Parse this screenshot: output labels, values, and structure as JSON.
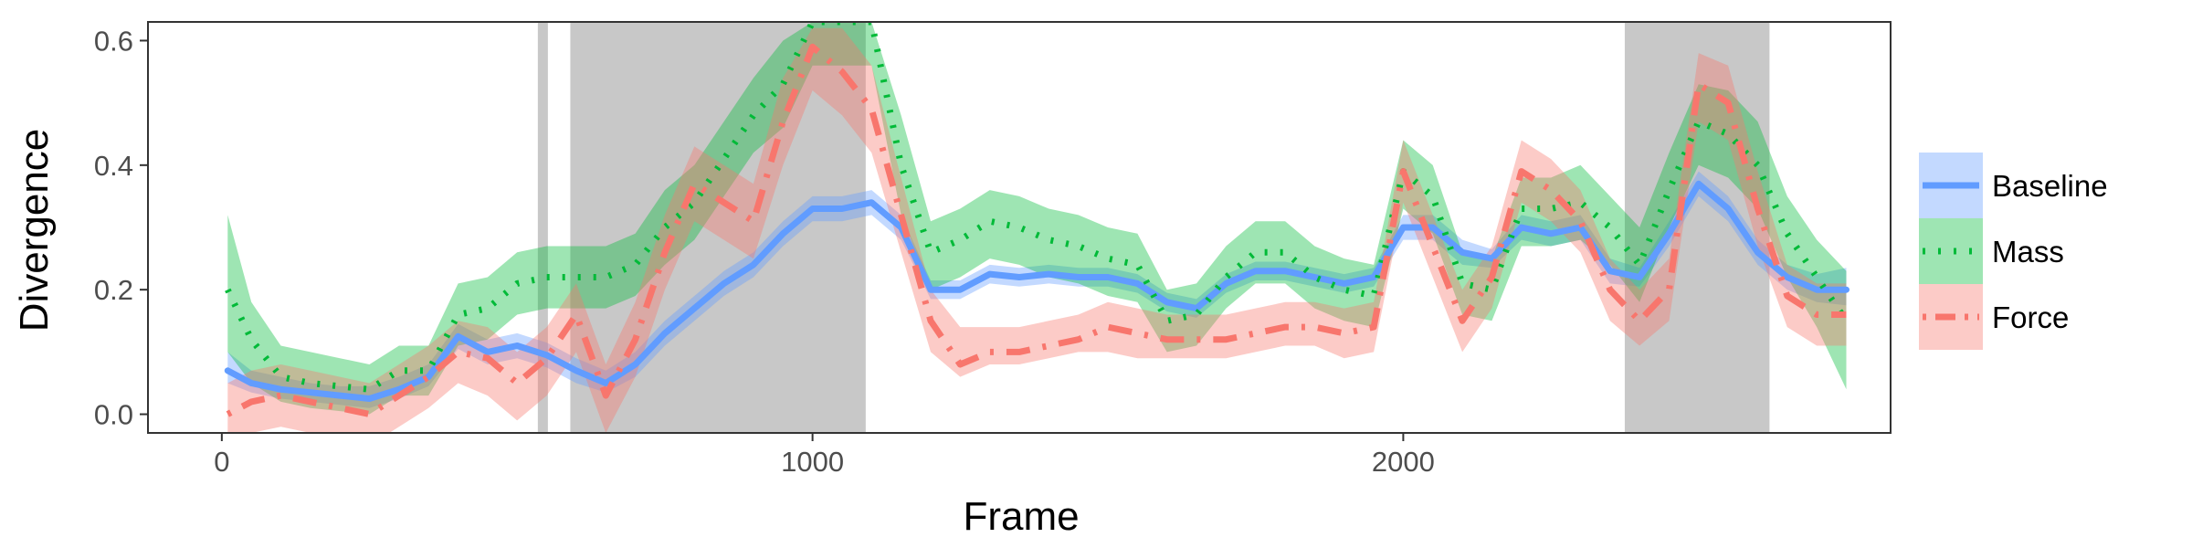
{
  "chart_data": {
    "type": "line",
    "title": "",
    "xlabel": "Frame",
    "ylabel": "Divergence",
    "xlim": [
      -125,
      2825
    ],
    "ylim": [
      -0.03,
      0.63
    ],
    "xticks": [
      0,
      1000,
      2000
    ],
    "yticks": [
      0.0,
      0.2,
      0.4,
      0.6
    ],
    "x_tick_labels": [
      "0",
      "1000",
      "2000"
    ],
    "y_tick_labels": [
      "0.0",
      "0.2",
      "0.4",
      "0.6"
    ],
    "grid": false,
    "legend_position": "right",
    "shaded_regions": [
      [
        535,
        552
      ],
      [
        590,
        1090
      ],
      [
        2375,
        2620
      ]
    ],
    "x": [
      10,
      50,
      100,
      150,
      200,
      250,
      300,
      350,
      400,
      450,
      500,
      550,
      600,
      650,
      700,
      750,
      800,
      850,
      900,
      950,
      1000,
      1050,
      1100,
      1150,
      1200,
      1250,
      1300,
      1350,
      1400,
      1450,
      1500,
      1550,
      1600,
      1650,
      1700,
      1750,
      1800,
      1850,
      1900,
      1950,
      2000,
      2050,
      2100,
      2150,
      2200,
      2250,
      2300,
      2350,
      2400,
      2450,
      2500,
      2550,
      2600,
      2650,
      2700,
      2750
    ],
    "series": [
      {
        "name": "Baseline",
        "color": "#619CFF",
        "style": "solid",
        "values": [
          0.07,
          0.05,
          0.04,
          0.035,
          0.03,
          0.025,
          0.04,
          0.06,
          0.125,
          0.1,
          0.11,
          0.095,
          0.07,
          0.05,
          0.08,
          0.13,
          0.17,
          0.21,
          0.24,
          0.29,
          0.33,
          0.33,
          0.34,
          0.3,
          0.2,
          0.2,
          0.225,
          0.22,
          0.225,
          0.22,
          0.22,
          0.21,
          0.18,
          0.17,
          0.21,
          0.23,
          0.23,
          0.22,
          0.21,
          0.22,
          0.3,
          0.3,
          0.26,
          0.25,
          0.3,
          0.29,
          0.3,
          0.23,
          0.22,
          0.29,
          0.37,
          0.33,
          0.26,
          0.22,
          0.2,
          0.2
        ],
        "lower": [
          0.05,
          0.035,
          0.025,
          0.02,
          0.015,
          0.01,
          0.025,
          0.045,
          0.105,
          0.08,
          0.09,
          0.075,
          0.05,
          0.035,
          0.06,
          0.11,
          0.15,
          0.19,
          0.22,
          0.27,
          0.31,
          0.31,
          0.32,
          0.28,
          0.185,
          0.185,
          0.21,
          0.205,
          0.21,
          0.205,
          0.205,
          0.195,
          0.165,
          0.155,
          0.195,
          0.215,
          0.215,
          0.205,
          0.195,
          0.205,
          0.28,
          0.28,
          0.24,
          0.235,
          0.28,
          0.27,
          0.28,
          0.21,
          0.205,
          0.27,
          0.35,
          0.31,
          0.24,
          0.2,
          0.18,
          0.175
        ],
        "upper": [
          0.1,
          0.07,
          0.06,
          0.05,
          0.045,
          0.045,
          0.06,
          0.08,
          0.145,
          0.12,
          0.13,
          0.115,
          0.09,
          0.07,
          0.1,
          0.15,
          0.19,
          0.23,
          0.26,
          0.31,
          0.35,
          0.35,
          0.36,
          0.32,
          0.215,
          0.215,
          0.24,
          0.235,
          0.24,
          0.235,
          0.235,
          0.225,
          0.195,
          0.185,
          0.225,
          0.245,
          0.245,
          0.235,
          0.225,
          0.235,
          0.32,
          0.32,
          0.28,
          0.265,
          0.32,
          0.31,
          0.32,
          0.25,
          0.235,
          0.31,
          0.39,
          0.35,
          0.28,
          0.24,
          0.225,
          0.235
        ]
      },
      {
        "name": "Mass",
        "color": "#00BA38",
        "style": "dotted",
        "values": [
          0.2,
          0.12,
          0.06,
          0.05,
          0.045,
          0.04,
          0.07,
          0.07,
          0.16,
          0.17,
          0.21,
          0.22,
          0.22,
          0.22,
          0.24,
          0.3,
          0.34,
          0.41,
          0.48,
          0.53,
          0.63,
          0.63,
          0.63,
          0.4,
          0.26,
          0.28,
          0.31,
          0.3,
          0.28,
          0.27,
          0.25,
          0.24,
          0.15,
          0.16,
          0.22,
          0.26,
          0.26,
          0.22,
          0.2,
          0.19,
          0.39,
          0.35,
          0.21,
          0.2,
          0.33,
          0.33,
          0.34,
          0.3,
          0.24,
          0.36,
          0.47,
          0.45,
          0.4,
          0.29,
          0.22,
          0.15
        ],
        "lower": [
          0.1,
          0.05,
          0.02,
          0.01,
          0.005,
          0.0,
          0.03,
          0.03,
          0.11,
          0.12,
          0.16,
          0.17,
          0.17,
          0.17,
          0.19,
          0.24,
          0.28,
          0.35,
          0.42,
          0.46,
          0.56,
          0.56,
          0.56,
          0.32,
          0.2,
          0.22,
          0.25,
          0.24,
          0.22,
          0.21,
          0.19,
          0.18,
          0.1,
          0.11,
          0.17,
          0.21,
          0.21,
          0.17,
          0.15,
          0.14,
          0.33,
          0.29,
          0.16,
          0.15,
          0.27,
          0.27,
          0.28,
          0.24,
          0.18,
          0.3,
          0.4,
          0.38,
          0.33,
          0.22,
          0.14,
          0.04
        ],
        "upper": [
          0.32,
          0.18,
          0.11,
          0.1,
          0.09,
          0.08,
          0.11,
          0.11,
          0.21,
          0.22,
          0.26,
          0.27,
          0.27,
          0.27,
          0.29,
          0.36,
          0.4,
          0.47,
          0.54,
          0.6,
          0.63,
          0.63,
          0.63,
          0.48,
          0.31,
          0.33,
          0.36,
          0.35,
          0.33,
          0.32,
          0.3,
          0.29,
          0.2,
          0.21,
          0.27,
          0.31,
          0.31,
          0.27,
          0.25,
          0.24,
          0.44,
          0.4,
          0.26,
          0.25,
          0.38,
          0.38,
          0.4,
          0.35,
          0.3,
          0.42,
          0.53,
          0.52,
          0.47,
          0.35,
          0.28,
          0.23
        ]
      },
      {
        "name": "Force",
        "color": "#F8766D",
        "style": "dotdash",
        "values": [
          0.0,
          0.02,
          0.03,
          0.02,
          0.01,
          0.0,
          0.03,
          0.06,
          0.1,
          0.09,
          0.05,
          0.09,
          0.16,
          0.03,
          0.12,
          0.26,
          0.37,
          0.34,
          0.31,
          0.47,
          0.59,
          0.55,
          0.49,
          0.32,
          0.15,
          0.08,
          0.1,
          0.1,
          0.11,
          0.12,
          0.14,
          0.13,
          0.12,
          0.12,
          0.12,
          0.13,
          0.14,
          0.14,
          0.13,
          0.14,
          0.39,
          0.27,
          0.15,
          0.22,
          0.39,
          0.36,
          0.31,
          0.2,
          0.15,
          0.2,
          0.53,
          0.5,
          0.33,
          0.19,
          0.16,
          0.16
        ],
        "lower": [
          -0.05,
          -0.03,
          -0.02,
          -0.03,
          -0.04,
          -0.05,
          -0.02,
          0.01,
          0.05,
          0.03,
          -0.01,
          0.03,
          0.1,
          -0.03,
          0.06,
          0.2,
          0.31,
          0.28,
          0.25,
          0.4,
          0.52,
          0.48,
          0.42,
          0.26,
          0.1,
          0.06,
          0.08,
          0.08,
          0.09,
          0.1,
          0.1,
          0.09,
          0.09,
          0.09,
          0.09,
          0.1,
          0.11,
          0.11,
          0.09,
          0.1,
          0.34,
          0.22,
          0.1,
          0.17,
          0.34,
          0.31,
          0.26,
          0.15,
          0.11,
          0.15,
          0.47,
          0.44,
          0.27,
          0.14,
          0.11,
          0.11
        ],
        "upper": [
          0.05,
          0.07,
          0.08,
          0.07,
          0.06,
          0.05,
          0.08,
          0.11,
          0.15,
          0.14,
          0.1,
          0.14,
          0.21,
          0.08,
          0.18,
          0.32,
          0.43,
          0.4,
          0.37,
          0.54,
          0.62,
          0.62,
          0.56,
          0.38,
          0.2,
          0.14,
          0.14,
          0.14,
          0.15,
          0.16,
          0.18,
          0.17,
          0.16,
          0.16,
          0.16,
          0.17,
          0.18,
          0.18,
          0.17,
          0.18,
          0.44,
          0.32,
          0.2,
          0.27,
          0.44,
          0.41,
          0.36,
          0.25,
          0.2,
          0.25,
          0.58,
          0.56,
          0.39,
          0.24,
          0.21,
          0.21
        ]
      }
    ]
  }
}
